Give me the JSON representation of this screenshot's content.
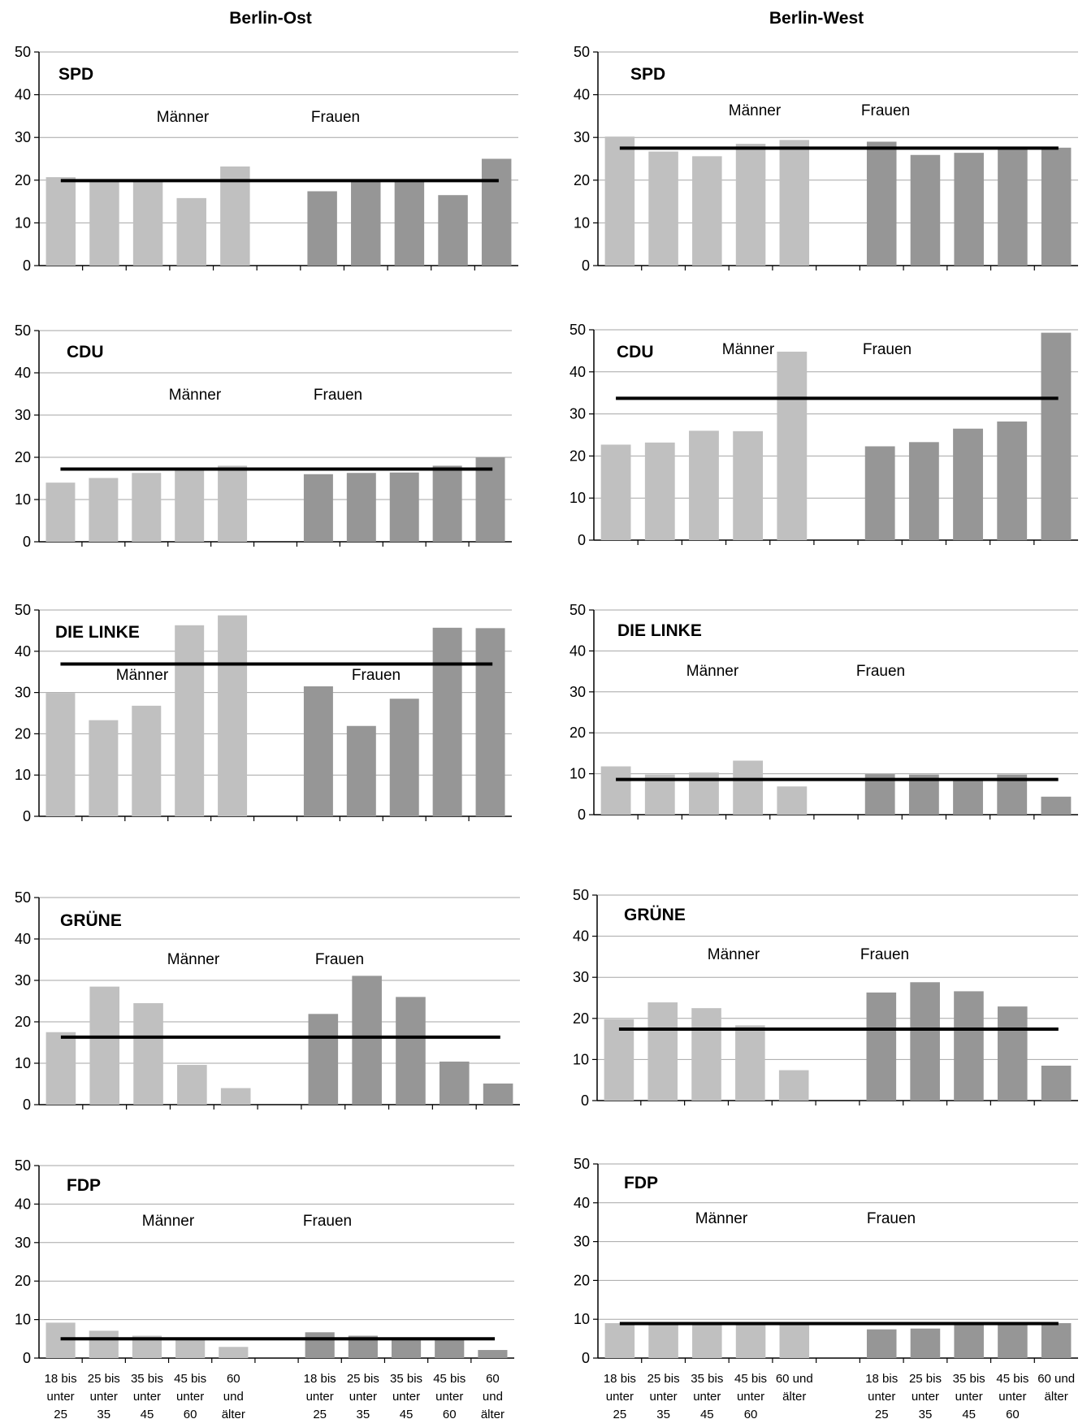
{
  "columns": [
    "Berlin-Ost",
    "Berlin-West"
  ],
  "colors": {
    "men": "#c0c0c0",
    "women": "#969696",
    "grid": "#a6a6a6",
    "axis": "#000000",
    "average_line": "#000000"
  },
  "chart_data": [
    {
      "type": "bar",
      "region": "Berlin-Ost",
      "title": "SPD",
      "group_labels": [
        "Männer",
        "Frauen"
      ],
      "categories": [
        "18 bis unter 25",
        "25 bis unter 35",
        "35 bis unter 45",
        "45 bis unter 60",
        "60 und älter"
      ],
      "series": [
        {
          "name": "Männer",
          "values": [
            20.7,
            19.6,
            19.8,
            15.8,
            23.2
          ]
        },
        {
          "name": "Frauen",
          "values": [
            17.4,
            19.7,
            19.8,
            16.5,
            25.0
          ]
        }
      ],
      "average": 19.9,
      "ylim": [
        0,
        50
      ],
      "yticks": [
        0,
        10,
        20,
        30,
        40,
        50
      ],
      "grid": true
    },
    {
      "type": "bar",
      "region": "Berlin-West",
      "title": "SPD",
      "group_labels": [
        "Männer",
        "Frauen"
      ],
      "categories": [
        "18 bis unter 25",
        "25 bis unter 35",
        "35 bis unter 45",
        "45 bis unter 60",
        "60 und älter"
      ],
      "series": [
        {
          "name": "Männer",
          "values": [
            30.2,
            26.7,
            25.6,
            28.5,
            29.4
          ]
        },
        {
          "name": "Frauen",
          "values": [
            29.0,
            25.9,
            26.4,
            27.3,
            27.6
          ]
        }
      ],
      "average": 27.5,
      "ylim": [
        0,
        50
      ],
      "yticks": [
        0,
        10,
        20,
        30,
        40,
        50
      ],
      "grid": true
    },
    {
      "type": "bar",
      "region": "Berlin-Ost",
      "title": "CDU",
      "group_labels": [
        "Männer",
        "Frauen"
      ],
      "categories": [
        "18 bis unter 25",
        "25 bis unter 35",
        "35 bis unter 45",
        "45 bis unter 60",
        "60 und älter"
      ],
      "series": [
        {
          "name": "Männer",
          "values": [
            14.0,
            15.1,
            16.3,
            17.3,
            18.0
          ]
        },
        {
          "name": "Frauen",
          "values": [
            16.0,
            16.3,
            16.4,
            18.0,
            20.0
          ]
        }
      ],
      "average": 17.2,
      "ylim": [
        0,
        50
      ],
      "yticks": [
        0,
        10,
        20,
        30,
        40,
        50
      ],
      "grid": true
    },
    {
      "type": "bar",
      "region": "Berlin-West",
      "title": "CDU",
      "group_labels": [
        "Männer",
        "Frauen"
      ],
      "categories": [
        "18 bis unter 25",
        "25 bis unter 35",
        "35 bis unter 45",
        "45 bis unter 60",
        "60 und älter"
      ],
      "series": [
        {
          "name": "Männer",
          "values": [
            22.7,
            23.2,
            26.0,
            25.9,
            44.8
          ]
        },
        {
          "name": "Frauen",
          "values": [
            22.3,
            23.3,
            26.5,
            28.2,
            49.3
          ]
        }
      ],
      "average": 33.7,
      "ylim": [
        0,
        50
      ],
      "yticks": [
        0,
        10,
        20,
        30,
        40,
        50
      ],
      "grid": true
    },
    {
      "type": "bar",
      "region": "Berlin-Ost",
      "title": "DIE LINKE",
      "group_labels": [
        "Männer",
        "Frauen"
      ],
      "categories": [
        "18 bis unter 25",
        "25 bis unter 35",
        "35 bis unter 45",
        "45 bis unter 60",
        "60 und älter"
      ],
      "series": [
        {
          "name": "Männer",
          "values": [
            29.9,
            23.3,
            26.8,
            46.3,
            48.7
          ]
        },
        {
          "name": "Frauen",
          "values": [
            31.5,
            21.9,
            28.5,
            45.7,
            45.6
          ]
        }
      ],
      "average": 36.9,
      "ylim": [
        0,
        50
      ],
      "yticks": [
        0,
        10,
        20,
        30,
        40,
        50
      ],
      "grid": true
    },
    {
      "type": "bar",
      "region": "Berlin-West",
      "title": "DIE LINKE",
      "group_labels": [
        "Männer",
        "Frauen"
      ],
      "categories": [
        "18 bis unter 25",
        "25 bis unter 35",
        "35 bis unter 45",
        "45 bis unter 60",
        "60 und älter"
      ],
      "series": [
        {
          "name": "Männer",
          "values": [
            11.8,
            9.8,
            10.3,
            13.2,
            6.9
          ]
        },
        {
          "name": "Frauen",
          "values": [
            9.9,
            9.8,
            8.4,
            9.8,
            4.4
          ]
        }
      ],
      "average": 8.6,
      "ylim": [
        0,
        50
      ],
      "yticks": [
        0,
        10,
        20,
        30,
        40,
        50
      ],
      "grid": true
    },
    {
      "type": "bar",
      "region": "Berlin-Ost",
      "title": "GRÜNE",
      "group_labels": [
        "Männer",
        "Frauen"
      ],
      "categories": [
        "18 bis unter 25",
        "25 bis unter 35",
        "35 bis unter 45",
        "45 bis unter 60",
        "60 und älter"
      ],
      "series": [
        {
          "name": "Männer",
          "values": [
            17.5,
            28.5,
            24.5,
            9.6,
            4.0
          ]
        },
        {
          "name": "Frauen",
          "values": [
            21.9,
            31.1,
            26.0,
            10.4,
            5.1
          ]
        }
      ],
      "average": 16.3,
      "ylim": [
        0,
        50
      ],
      "yticks": [
        0,
        10,
        20,
        30,
        40,
        50
      ],
      "grid": true
    },
    {
      "type": "bar",
      "region": "Berlin-West",
      "title": "GRÜNE",
      "group_labels": [
        "Männer",
        "Frauen"
      ],
      "categories": [
        "18 bis unter 25",
        "25 bis unter 35",
        "35 bis unter 45",
        "45 bis unter 60",
        "60 und älter"
      ],
      "series": [
        {
          "name": "Männer",
          "values": [
            19.8,
            23.9,
            22.5,
            18.3,
            7.4
          ]
        },
        {
          "name": "Frauen",
          "values": [
            26.3,
            28.8,
            26.6,
            22.9,
            8.5
          ]
        }
      ],
      "average": 17.4,
      "ylim": [
        0,
        50
      ],
      "yticks": [
        0,
        10,
        20,
        30,
        40,
        50
      ],
      "grid": true
    },
    {
      "type": "bar",
      "region": "Berlin-Ost",
      "title": "FDP",
      "group_labels": [
        "Männer",
        "Frauen"
      ],
      "categories": [
        "18 bis unter 25",
        "25 bis unter 35",
        "35 bis unter 45",
        "45 bis unter 60",
        "60 und älter"
      ],
      "series": [
        {
          "name": "Männer",
          "values": [
            9.2,
            7.1,
            5.8,
            5.0,
            2.9
          ]
        },
        {
          "name": "Frauen",
          "values": [
            6.7,
            5.8,
            5.0,
            5.0,
            2.1
          ]
        }
      ],
      "average": 5.0,
      "ylim": [
        0,
        50
      ],
      "yticks": [
        0,
        10,
        20,
        30,
        40,
        50
      ],
      "grid": true
    },
    {
      "type": "bar",
      "region": "Berlin-West",
      "title": "FDP",
      "group_labels": [
        "Männer",
        "Frauen"
      ],
      "categories": [
        "18 bis unter 25",
        "25 bis unter 35",
        "35 bis unter 45",
        "45 bis unter 60",
        "60 und älter"
      ],
      "series": [
        {
          "name": "Männer",
          "values": [
            9.0,
            9.0,
            9.0,
            9.0,
            9.0
          ]
        },
        {
          "name": "Frauen",
          "values": [
            7.4,
            7.6,
            9.0,
            9.0,
            9.0
          ]
        }
      ],
      "average": 8.9,
      "ylim": [
        0,
        50
      ],
      "yticks": [
        0,
        10,
        20,
        30,
        40,
        50
      ],
      "grid": true
    }
  ]
}
